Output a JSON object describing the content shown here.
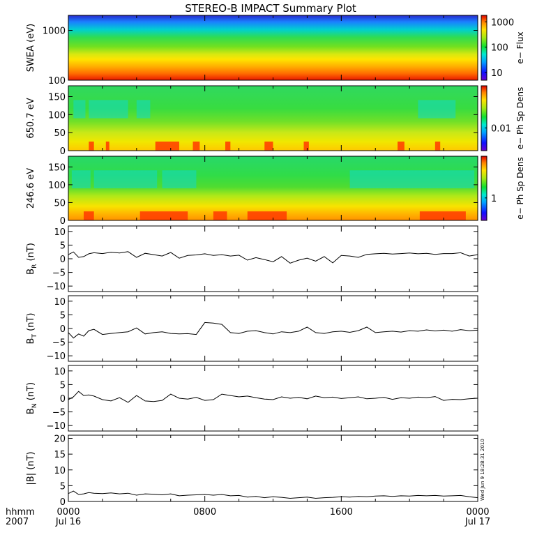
{
  "title": "STEREO-B IMPACT Summary Plot",
  "footer": {
    "x_label_line1": "hhmm",
    "x_label_line2": "2007",
    "stamp": "Wed Jun  9 18:28:31 2010"
  },
  "colors": {
    "background": "#ffffff",
    "trace": "#000000"
  },
  "chart_data": [
    {
      "type": "heatmap",
      "ylabel": "SWEA (eV)",
      "y_scale": "log",
      "ylim": [
        100,
        2000
      ],
      "y_ticks": [
        100,
        1000
      ],
      "y_tick_labels": [
        "100",
        "1000"
      ],
      "colorbar_label": "e− Flux",
      "colorbar_scale": "log",
      "colorbar_ticks": [
        "10",
        "100",
        "1000"
      ],
      "description_rows": [
        {
          "energy": 2000,
          "color": "#1e1ecc"
        },
        {
          "energy": 1600,
          "color": "#1a8cff"
        },
        {
          "energy": 1250,
          "color": "#00cccc"
        },
        {
          "energy": 950,
          "color": "#33dd55"
        },
        {
          "energy": 700,
          "color": "#44dd22"
        },
        {
          "energy": 500,
          "color": "#bbe816"
        },
        {
          "energy": 350,
          "color": "#ffe000"
        },
        {
          "energy": 250,
          "color": "#ffa000"
        },
        {
          "energy": 180,
          "color": "#ff6000"
        },
        {
          "energy": 110,
          "color": "#ee1a00"
        }
      ]
    },
    {
      "type": "heatmap",
      "ylabel": "650.7 eV",
      "ylim": [
        0,
        180
      ],
      "y_ticks": [
        0,
        50,
        100,
        150
      ],
      "y_tick_labels": [
        "0",
        "50",
        "100",
        "150"
      ],
      "colorbar_label": "e− Ph Sp Dens",
      "colorbar_scale": "log",
      "colorbar_ticks": [
        "0.01"
      ],
      "hot_intervals_hours": [
        [
          1.2,
          1.5
        ],
        [
          2.2,
          2.4
        ],
        [
          5.1,
          6.5
        ],
        [
          7.3,
          7.7
        ],
        [
          9.2,
          9.5
        ],
        [
          11.5,
          12.0
        ],
        [
          13.8,
          14.1
        ],
        [
          19.3,
          19.7
        ],
        [
          21.5,
          21.8
        ]
      ],
      "cool_intervals_hours": [
        [
          0.3,
          1.0
        ],
        [
          1.2,
          3.5
        ],
        [
          4.0,
          4.8
        ],
        [
          20.5,
          22.7
        ]
      ]
    },
    {
      "type": "heatmap",
      "ylabel": "246.6 eV",
      "ylim": [
        0,
        180
      ],
      "y_ticks": [
        0,
        50,
        100,
        150
      ],
      "y_tick_labels": [
        "0",
        "50",
        "100",
        "150"
      ],
      "colorbar_label": "e− Ph Sp Dens",
      "colorbar_scale": "log",
      "colorbar_ticks": [
        "1"
      ],
      "hot_intervals_hours": [
        [
          0.9,
          1.5
        ],
        [
          4.2,
          7.0
        ],
        [
          8.5,
          9.3
        ],
        [
          10.5,
          12.8
        ],
        [
          20.6,
          23.3
        ]
      ],
      "cool_intervals_hours": [
        [
          0.2,
          1.3
        ],
        [
          1.5,
          5.2
        ],
        [
          5.5,
          7.5
        ],
        [
          16.5,
          23.8
        ]
      ]
    },
    {
      "type": "line",
      "ylabel": "B_R (nT)",
      "ylabel_main": "B",
      "ylabel_sub": "R",
      "ylabel_unit": " (nT)",
      "ylim": [
        -12,
        12
      ],
      "y_ticks": [
        -10,
        -5,
        0,
        5,
        10
      ],
      "y_tick_labels": [
        "−10",
        "−5",
        "0",
        "5",
        "10"
      ],
      "x_hours": [
        0,
        0.3,
        0.6,
        0.9,
        1.2,
        1.5,
        2,
        2.5,
        3,
        3.5,
        4,
        4.5,
        5,
        5.5,
        6,
        6.5,
        7,
        7.5,
        8,
        8.5,
        9,
        9.5,
        10,
        10.5,
        11,
        11.5,
        12,
        12.5,
        13,
        13.5,
        14,
        14.5,
        15,
        15.5,
        16,
        16.5,
        17,
        17.5,
        18,
        18.5,
        19,
        19.5,
        20,
        20.5,
        21,
        21.5,
        22,
        22.5,
        23,
        23.5,
        24
      ],
      "y": [
        1.5,
        2.5,
        0.5,
        0.8,
        1.8,
        2.2,
        1.9,
        2.4,
        2.1,
        2.6,
        0.5,
        2.0,
        1.5,
        1.0,
        2.3,
        0.2,
        1.2,
        1.4,
        1.8,
        1.2,
        1.5,
        1.0,
        1.3,
        -0.5,
        0.4,
        -0.3,
        -1.1,
        0.8,
        -1.6,
        -0.5,
        0.2,
        -0.9,
        0.8,
        -1.5,
        1.2,
        1.0,
        0.5,
        1.6,
        1.8,
        2.0,
        1.7,
        1.9,
        2.1,
        1.8,
        2.0,
        1.6,
        1.9,
        1.9,
        2.2,
        1.0,
        1.5
      ]
    },
    {
      "type": "line",
      "ylabel": "B_T (nT)",
      "ylabel_main": "B",
      "ylabel_sub": "T",
      "ylabel_unit": " (nT)",
      "ylim": [
        -12,
        12
      ],
      "y_ticks": [
        -10,
        -5,
        0,
        5,
        10
      ],
      "y_tick_labels": [
        "−10",
        "−5",
        "0",
        "5",
        "10"
      ],
      "x_hours": [
        0,
        0.3,
        0.6,
        0.9,
        1.2,
        1.5,
        2,
        2.5,
        3,
        3.5,
        4,
        4.5,
        5,
        5.5,
        6,
        6.5,
        7,
        7.5,
        8,
        8.5,
        9,
        9.5,
        10,
        10.5,
        11,
        11.5,
        12,
        12.5,
        13,
        13.5,
        14,
        14.5,
        15,
        15.5,
        16,
        16.5,
        17,
        17.5,
        18,
        18.5,
        19,
        19.5,
        20,
        20.5,
        21,
        21.5,
        22,
        22.5,
        23,
        23.5,
        24
      ],
      "y": [
        -1.5,
        -3.5,
        -2.0,
        -2.8,
        -0.8,
        -0.3,
        -2.2,
        -1.8,
        -1.5,
        -1.2,
        0.2,
        -2.0,
        -1.5,
        -1.2,
        -1.8,
        -2.0,
        -1.9,
        -2.2,
        2.2,
        2.0,
        1.5,
        -1.5,
        -1.8,
        -1.0,
        -0.8,
        -1.5,
        -2.0,
        -1.2,
        -1.5,
        -1.0,
        0.5,
        -1.5,
        -1.8,
        -1.2,
        -1.0,
        -1.4,
        -0.8,
        0.5,
        -1.5,
        -1.2,
        -1.0,
        -1.3,
        -0.8,
        -1.0,
        -0.5,
        -0.9,
        -0.6,
        -1.0,
        -0.4,
        -0.8,
        -0.6
      ]
    },
    {
      "type": "line",
      "ylabel": "B_N (nT)",
      "ylabel_main": "B",
      "ylabel_sub": "N",
      "ylabel_unit": " (nT)",
      "ylim": [
        -12,
        12
      ],
      "y_ticks": [
        -10,
        -5,
        0,
        5,
        10
      ],
      "y_tick_labels": [
        "−10",
        "−5",
        "0",
        "5",
        "10"
      ],
      "x_hours": [
        0,
        0.3,
        0.6,
        0.9,
        1.2,
        1.5,
        2,
        2.5,
        3,
        3.5,
        4,
        4.5,
        5,
        5.5,
        6,
        6.5,
        7,
        7.5,
        8,
        8.5,
        9,
        9.5,
        10,
        10.5,
        11,
        11.5,
        12,
        12.5,
        13,
        13.5,
        14,
        14.5,
        15,
        15.5,
        16,
        16.5,
        17,
        17.5,
        18,
        18.5,
        19,
        19.5,
        20,
        20.5,
        21,
        21.5,
        22,
        22.5,
        23,
        23.5,
        24
      ],
      "y": [
        -0.5,
        0.5,
        2.5,
        1.0,
        1.2,
        0.8,
        -0.5,
        -1.0,
        0.2,
        -1.5,
        1.0,
        -1.0,
        -1.2,
        -0.8,
        1.5,
        0.0,
        -0.3,
        0.3,
        -0.8,
        -0.5,
        1.5,
        1.0,
        0.5,
        0.8,
        0.2,
        -0.3,
        -0.5,
        0.5,
        0.0,
        0.3,
        -0.2,
        0.8,
        0.2,
        0.4,
        -0.1,
        0.2,
        0.5,
        -0.2,
        0.0,
        0.3,
        -0.4,
        0.2,
        0.0,
        0.4,
        0.2,
        0.6,
        -0.8,
        -0.4,
        -0.5,
        -0.2,
        0.0
      ]
    },
    {
      "type": "line",
      "ylabel": "|B| (nT)",
      "ylabel_main": "|B|",
      "ylabel_sub": "",
      "ylabel_unit": " (nT)",
      "ylim": [
        0,
        21
      ],
      "y_ticks": [
        0,
        5,
        10,
        15,
        20
      ],
      "y_tick_labels": [
        "0",
        "5",
        "10",
        "15",
        "20"
      ],
      "x_hours": [
        0,
        0.3,
        0.6,
        0.9,
        1.2,
        1.5,
        2,
        2.5,
        3,
        3.5,
        4,
        4.5,
        5,
        5.5,
        6,
        6.5,
        7,
        7.5,
        8,
        8.5,
        9,
        9.5,
        10,
        10.5,
        11,
        11.5,
        12,
        12.5,
        13,
        13.5,
        14,
        14.5,
        15,
        15.5,
        16,
        16.5,
        17,
        17.5,
        18,
        18.5,
        19,
        19.5,
        20,
        20.5,
        21,
        21.5,
        22,
        22.5,
        23,
        23.5,
        24
      ],
      "y": [
        2.5,
        3.3,
        2.2,
        2.4,
        2.8,
        2.6,
        2.5,
        2.7,
        2.4,
        2.6,
        2.0,
        2.4,
        2.3,
        2.1,
        2.4,
        1.8,
        2.0,
        2.1,
        2.2,
        2.0,
        2.2,
        1.8,
        1.9,
        1.4,
        1.6,
        1.2,
        1.5,
        1.3,
        1.0,
        1.2,
        1.4,
        1.0,
        1.2,
        1.3,
        1.5,
        1.4,
        1.6,
        1.5,
        1.7,
        1.8,
        1.6,
        1.8,
        1.7,
        1.9,
        1.8,
        1.9,
        1.7,
        1.8,
        1.9,
        1.5,
        1.2
      ]
    }
  ],
  "x_axis": {
    "xlim_hours": [
      0,
      24
    ],
    "tick_labels": [
      "0000",
      "0800",
      "1600",
      "0000"
    ],
    "tick_hours": [
      0,
      8,
      16,
      24
    ],
    "date_labels": [
      "Jul 16",
      "Jul 17"
    ]
  }
}
